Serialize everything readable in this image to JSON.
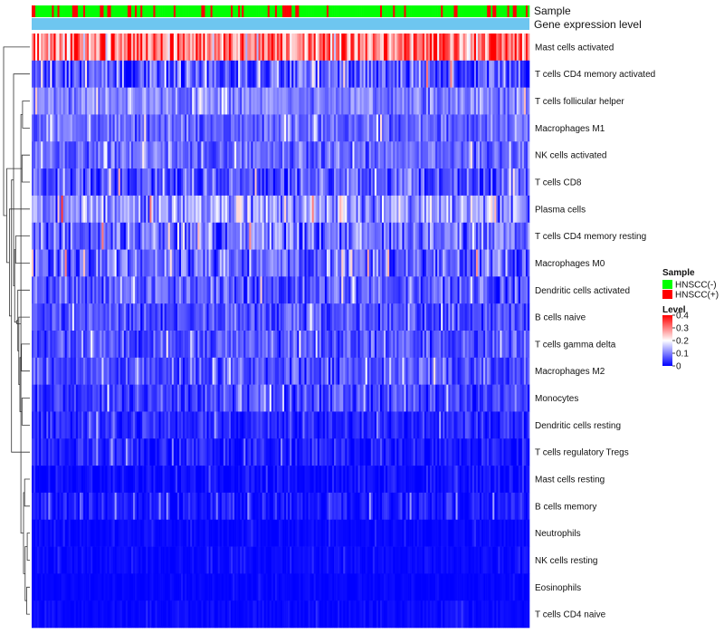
{
  "chart_data": {
    "type": "heatmap",
    "annotations": {
      "sample_label": "Sample",
      "level_bar_label": "Gene expression level"
    },
    "rows": [
      {
        "name": "Mast cells activated",
        "mean": 0.3,
        "spread": 0.1
      },
      {
        "name": "T cells CD4 memory activated",
        "mean": 0.07,
        "spread": 0.06
      },
      {
        "name": "T cells follicular helper",
        "mean": 0.1,
        "spread": 0.04
      },
      {
        "name": "Macrophages M1",
        "mean": 0.08,
        "spread": 0.04
      },
      {
        "name": "NK cells activated",
        "mean": 0.08,
        "spread": 0.04
      },
      {
        "name": "T cells CD8",
        "mean": 0.06,
        "spread": 0.05
      },
      {
        "name": "Plasma cells",
        "mean": 0.12,
        "spread": 0.07
      },
      {
        "name": "T cells CD4 memory resting",
        "mean": 0.08,
        "spread": 0.06
      },
      {
        "name": "Macrophages M0",
        "mean": 0.08,
        "spread": 0.06
      },
      {
        "name": "Dendritic cells activated",
        "mean": 0.07,
        "spread": 0.05
      },
      {
        "name": "B cells naive",
        "mean": 0.06,
        "spread": 0.04
      },
      {
        "name": "T cells gamma delta",
        "mean": 0.06,
        "spread": 0.04
      },
      {
        "name": "Macrophages M2",
        "mean": 0.06,
        "spread": 0.04
      },
      {
        "name": "Monocytes",
        "mean": 0.05,
        "spread": 0.04
      },
      {
        "name": "Dendritic cells resting",
        "mean": 0.03,
        "spread": 0.03
      },
      {
        "name": "T cells regulatory  Tregs",
        "mean": 0.02,
        "spread": 0.03
      },
      {
        "name": "Mast cells resting",
        "mean": 0.01,
        "spread": 0.02
      },
      {
        "name": "B cells memory",
        "mean": 0.02,
        "spread": 0.03
      },
      {
        "name": "Neutrophils",
        "mean": 0.005,
        "spread": 0.01
      },
      {
        "name": "NK cells resting",
        "mean": 0.005,
        "spread": 0.01
      },
      {
        "name": "Eosinophils",
        "mean": 0.003,
        "spread": 0.006
      },
      {
        "name": "T cells CD4 naive",
        "mean": 0.005,
        "spread": 0.01
      }
    ],
    "n_columns": 270,
    "sample_pattern_seed": 7,
    "value_seed": 13,
    "fraction_hnscc_plus": 0.22,
    "color_scale": {
      "min": 0,
      "mid": 0.2,
      "max": 0.4,
      "low_color": "#0000ff",
      "mid_color": "#ffffff",
      "high_color": "#ff0000"
    },
    "legend": {
      "sample_title": "Sample",
      "sample_entries": [
        {
          "label": "HNSCC(-)",
          "color": "#00ff00"
        },
        {
          "label": "HNSCC(+)",
          "color": "#ff0000"
        }
      ],
      "level_title": "Level",
      "level_ticks": [
        {
          "value": 0.4,
          "label": "0.4"
        },
        {
          "value": 0.3,
          "label": "0.3"
        },
        {
          "value": 0.2,
          "label": "0.2"
        },
        {
          "value": 0.1,
          "label": "0.1"
        },
        {
          "value": 0,
          "label": "0"
        }
      ]
    },
    "level_bar_color": "#6ec6f0",
    "dendrogram_merges": [
      [
        18,
        19
      ],
      [
        20,
        21
      ],
      [
        -1,
        -2
      ],
      [
        16,
        17
      ],
      [
        -3,
        -4
      ],
      [
        2,
        3
      ],
      [
        4,
        5
      ],
      [
        -6,
        -5
      ],
      [
        13,
        14
      ],
      [
        11,
        12
      ],
      [
        -10,
        -9
      ],
      [
        10,
        -11
      ],
      [
        -12,
        9
      ],
      [
        -13,
        -8
      ],
      [
        7,
        8
      ],
      [
        -15,
        -14
      ],
      [
        1,
        -16
      ],
      [
        -17,
        15
      ],
      [
        -18,
        6
      ],
      [
        -19,
        -7
      ],
      [
        0,
        -20
      ]
    ],
    "dendrogram_heights": [
      0.1,
      0.12,
      0.18,
      0.2,
      0.24,
      0.28,
      0.3,
      0.34,
      0.3,
      0.32,
      0.38,
      0.42,
      0.46,
      0.5,
      0.54,
      0.58,
      0.62,
      0.7,
      0.78,
      0.88,
      1.0
    ]
  }
}
